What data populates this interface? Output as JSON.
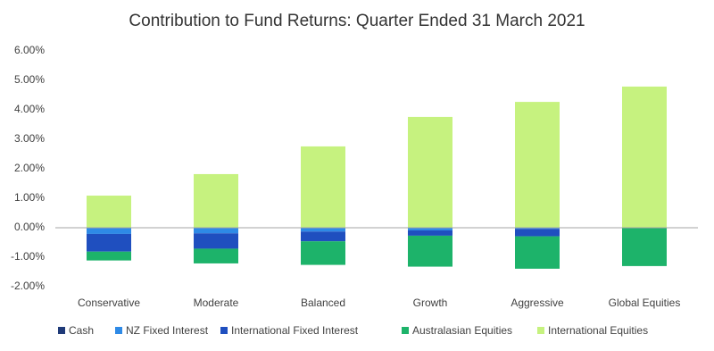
{
  "chart_data": {
    "type": "stacked-bar",
    "title": "Contribution to Fund Returns: Quarter Ended 31 March 2021",
    "categories": [
      "Conservative",
      "Moderate",
      "Balanced",
      "Growth",
      "Aggressive",
      "Global Equities"
    ],
    "series": [
      {
        "name": "Cash",
        "color": "#1f3a78",
        "values": [
          -0.01,
          -0.01,
          -0.01,
          -0.01,
          -0.01,
          0
        ]
      },
      {
        "name": "NZ Fixed Interest",
        "color": "#2e8ae6",
        "values": [
          -0.2,
          -0.18,
          -0.12,
          -0.08,
          -0.03,
          0
        ]
      },
      {
        "name": "International Fixed Interest",
        "color": "#1f4fbf",
        "values": [
          -0.6,
          -0.52,
          -0.33,
          -0.18,
          -0.25,
          0
        ]
      },
      {
        "name": "Australasian Equities",
        "color": "#1db36a",
        "values": [
          -0.3,
          -0.5,
          -0.8,
          -1.05,
          -1.1,
          -1.3
        ]
      },
      {
        "name": "International Equities",
        "color": "#c6f27f",
        "values": [
          1.09,
          1.82,
          2.76,
          3.76,
          4.27,
          4.79
        ]
      }
    ],
    "ylim": [
      -2,
      6
    ],
    "yticks": [
      {
        "value": 6,
        "label": "6.00%"
      },
      {
        "value": 5,
        "label": "5.00%"
      },
      {
        "value": 4,
        "label": "4.00%"
      },
      {
        "value": 3,
        "label": "3.00%"
      },
      {
        "value": 2,
        "label": "2.00%"
      },
      {
        "value": 1,
        "label": "1.00%"
      },
      {
        "value": 0,
        "label": "0.00%"
      },
      {
        "value": -1,
        "label": "-1.00%"
      },
      {
        "value": -2,
        "label": "-2.00%"
      }
    ],
    "grid": false,
    "legend": "bottom"
  }
}
